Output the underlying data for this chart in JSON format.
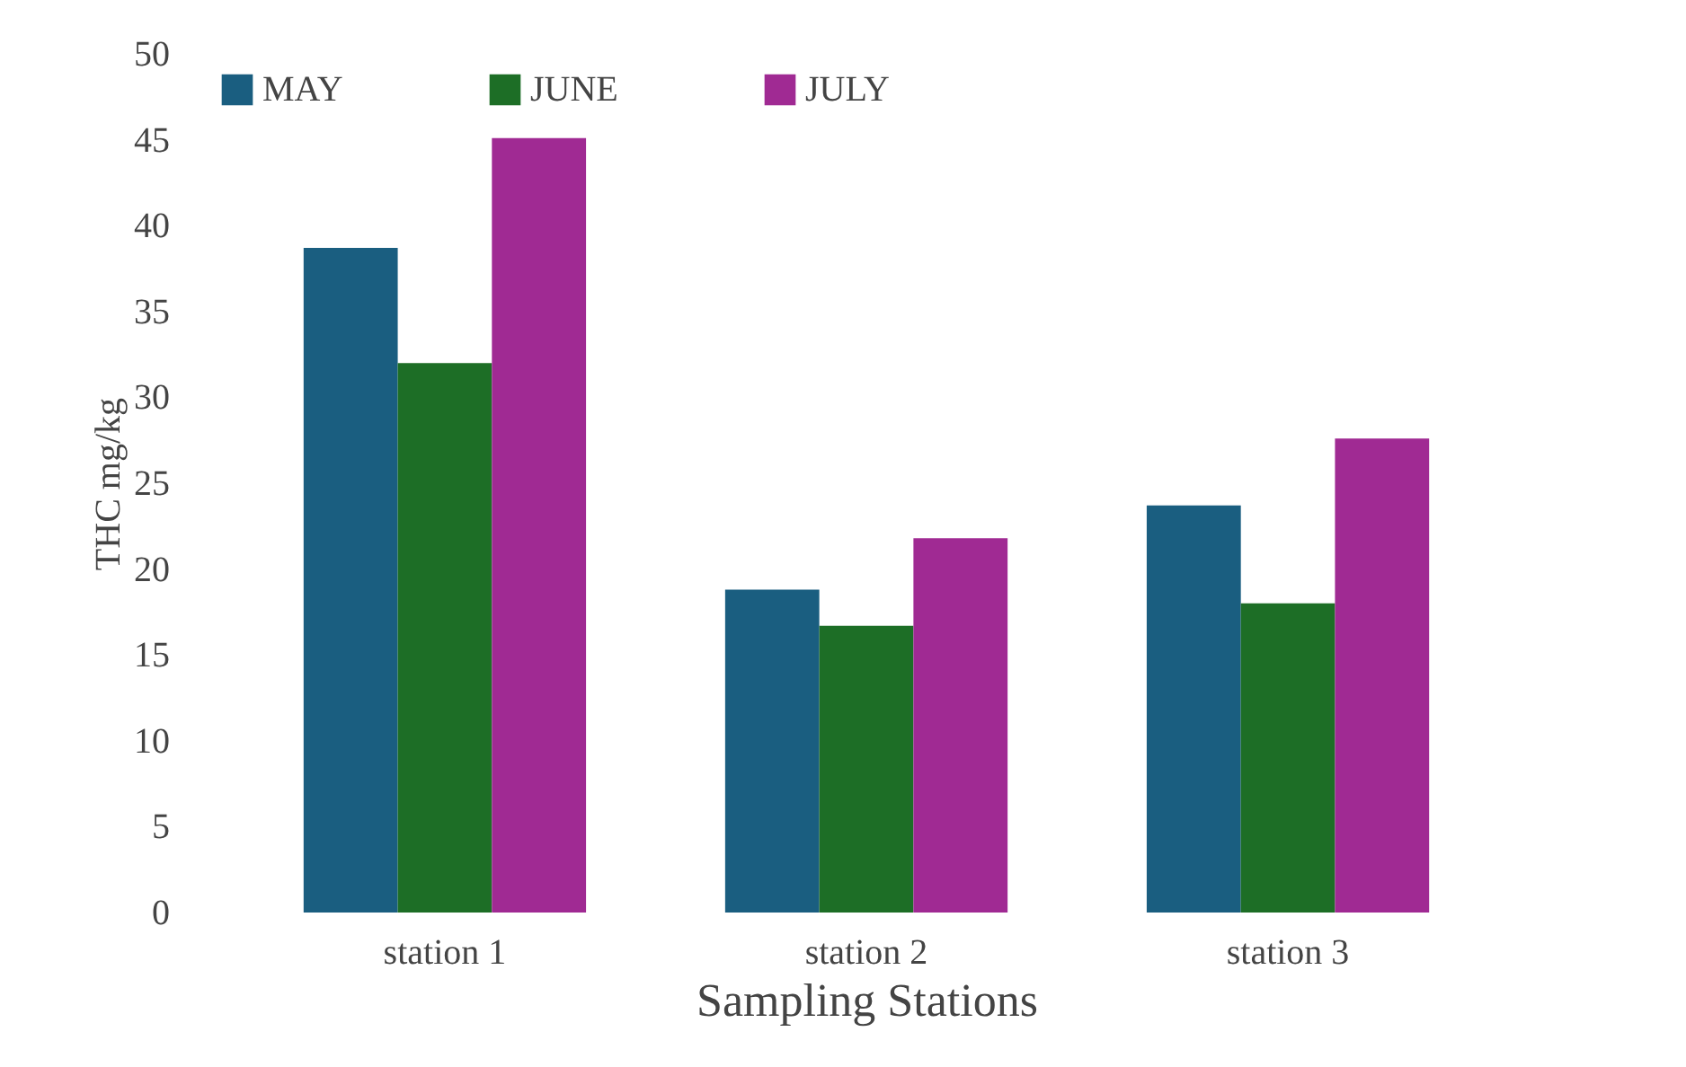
{
  "chart_data": {
    "type": "bar",
    "xlabel": "Sampling Stations",
    "ylabel": "THC mg/kg",
    "categories": [
      "station 1",
      "station 2",
      "station 3"
    ],
    "series": [
      {
        "name": "MAY",
        "color": "#1a5e80",
        "values": [
          38.7,
          18.8,
          23.7
        ]
      },
      {
        "name": "JUNE",
        "color": "#1d6e26",
        "values": [
          32.0,
          16.7,
          18.0
        ]
      },
      {
        "name": "JULY",
        "color": "#a02a93",
        "values": [
          45.1,
          21.8,
          27.6
        ]
      }
    ],
    "ylim": [
      0,
      50
    ],
    "yticks": [
      0,
      5,
      10,
      15,
      20,
      25,
      30,
      35,
      40,
      45,
      50
    ],
    "grid": false,
    "legend": "top"
  }
}
